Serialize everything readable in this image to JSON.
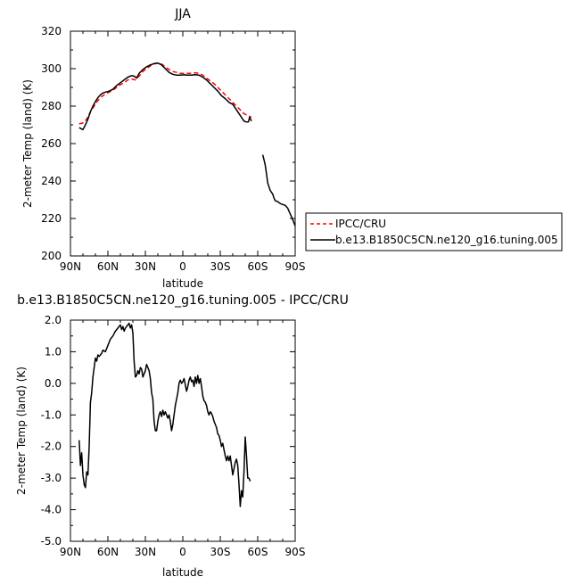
{
  "chart_data": [
    {
      "type": "line",
      "title": "JJA",
      "xlabel": "latitude",
      "ylabel": "2-meter Temp (land) (K)",
      "xlim": [
        90,
        -90
      ],
      "ylim": [
        200,
        320
      ],
      "x_ticks": [
        90,
        60,
        30,
        0,
        -30,
        -60,
        -90
      ],
      "x_tick_labels": [
        "90N",
        "60N",
        "30N",
        "0",
        "30S",
        "60S",
        "90S"
      ],
      "y_ticks": [
        200,
        220,
        240,
        260,
        280,
        300,
        320
      ],
      "y_tick_labels": [
        "200",
        "220",
        "240",
        "260",
        "280",
        "300",
        "320"
      ],
      "legend_position": "right, outside plot",
      "series": [
        {
          "name": "IPCC/CRU",
          "color": "#ff0000",
          "dash": "dashed",
          "points": [
            [
              83,
              270.5
            ],
            [
              80,
              271
            ],
            [
              77,
              273
            ],
            [
              74,
              277
            ],
            [
              71,
              280
            ],
            [
              68,
              283
            ],
            [
              65,
              285
            ],
            [
              62,
              286.5
            ],
            [
              59,
              287.5
            ],
            [
              56,
              288.5
            ],
            [
              53,
              290
            ],
            [
              50,
              291.5
            ],
            [
              47,
              292.5
            ],
            [
              44,
              294
            ],
            [
              41,
              294.5
            ],
            [
              38,
              294
            ],
            [
              35,
              296
            ],
            [
              32,
              298.5
            ],
            [
              29,
              300
            ],
            [
              26,
              301.5
            ],
            [
              23,
              302.5
            ],
            [
              20,
              303
            ],
            [
              17,
              302.5
            ],
            [
              14,
              301
            ],
            [
              11,
              299.5
            ],
            [
              8,
              298.5
            ],
            [
              5,
              298
            ],
            [
              2,
              297.5
            ],
            [
              -1,
              297.5
            ],
            [
              -4,
              297.5
            ],
            [
              -7,
              297.5
            ],
            [
              -10,
              297.8
            ],
            [
              -13,
              297.5
            ],
            [
              -16,
              296.5
            ],
            [
              -19,
              295
            ],
            [
              -22,
              293.5
            ],
            [
              -25,
              292
            ],
            [
              -28,
              290
            ],
            [
              -31,
              288
            ],
            [
              -34,
              286
            ],
            [
              -37,
              284
            ],
            [
              -40,
              282
            ],
            [
              -43,
              280
            ],
            [
              -46,
              278
            ],
            [
              -49,
              276
            ],
            [
              -52,
              275
            ],
            [
              -55,
              274
            ]
          ]
        },
        {
          "name": "b.e13.B1850C5CN.ne120_g16.tuning.005",
          "color": "#000000",
          "dash": "solid",
          "segments": [
            [
              [
                83,
                268.5
              ],
              [
                80,
                267.5
              ],
              [
                78,
                270
              ],
              [
                76,
                273
              ],
              [
                74,
                277
              ],
              [
                72,
                280
              ],
              [
                70,
                282.5
              ],
              [
                68,
                284.5
              ],
              [
                66,
                286
              ],
              [
                64,
                287
              ],
              [
                62,
                287.5
              ],
              [
                59,
                288
              ],
              [
                56,
                289
              ],
              [
                53,
                291
              ],
              [
                50,
                292.5
              ],
              [
                47,
                294
              ],
              [
                44,
                295.5
              ],
              [
                41,
                296.3
              ],
              [
                39,
                296
              ],
              [
                37,
                295
              ],
              [
                35,
                297.5
              ],
              [
                32,
                299.5
              ],
              [
                29,
                301
              ],
              [
                26,
                302
              ],
              [
                23,
                302.7
              ],
              [
                20,
                303
              ],
              [
                17,
                302
              ],
              [
                14,
                300
              ],
              [
                11,
                298
              ],
              [
                8,
                297
              ],
              [
                5,
                296.5
              ],
              [
                2,
                296.5
              ],
              [
                -1,
                296.7
              ],
              [
                -4,
                296.5
              ],
              [
                -7,
                296.5
              ],
              [
                -10,
                296.8
              ],
              [
                -13,
                296.5
              ],
              [
                -16,
                295.5
              ],
              [
                -19,
                294
              ],
              [
                -22,
                292
              ],
              [
                -25,
                290
              ],
              [
                -28,
                288
              ],
              [
                -31,
                285.5
              ],
              [
                -34,
                284
              ],
              [
                -37,
                282
              ],
              [
                -40,
                281
              ],
              [
                -43,
                278
              ],
              [
                -45,
                276
              ],
              [
                -47,
                274
              ],
              [
                -49,
                272
              ],
              [
                -51,
                271.5
              ],
              [
                -52.5,
                271.5
              ],
              [
                -53.5,
                274
              ],
              [
                -55,
                272
              ]
            ],
            [
              [
                -64,
                254
              ],
              [
                -65,
                251.5
              ],
              [
                -66,
                248.5
              ],
              [
                -67,
                244
              ],
              [
                -68,
                239
              ],
              [
                -69,
                237
              ],
              [
                -70,
                235
              ],
              [
                -71,
                234
              ],
              [
                -72,
                233
              ],
              [
                -73,
                231
              ],
              [
                -74,
                229.5
              ],
              [
                -76,
                229
              ],
              [
                -78,
                228
              ],
              [
                -80,
                227.5
              ],
              [
                -82,
                227
              ],
              [
                -84,
                225.5
              ],
              [
                -86,
                222.5
              ],
              [
                -88,
                219.5
              ],
              [
                -90,
                216
              ]
            ]
          ]
        }
      ]
    },
    {
      "type": "line",
      "title": "b.e13.B1850C5CN.ne120_g16.tuning.005 - IPCC/CRU",
      "xlabel": "latitude",
      "ylabel": "2-meter Temp (land) (K)",
      "xlim": [
        90,
        -90
      ],
      "ylim": [
        -5.0,
        2.0
      ],
      "x_ticks": [
        90,
        60,
        30,
        0,
        -30,
        -60,
        -90
      ],
      "x_tick_labels": [
        "90N",
        "60N",
        "30N",
        "0",
        "30S",
        "60S",
        "90S"
      ],
      "y_ticks": [
        -5,
        -4,
        -3,
        -2,
        -1,
        0,
        1,
        2
      ],
      "y_tick_labels": [
        "-5.0",
        "-4.0",
        "-3.0",
        "-2.0",
        "-1.0",
        "0.0",
        "1.0",
        "2.0"
      ],
      "series": [
        {
          "name": "",
          "color": "#000000",
          "dash": "solid",
          "points": [
            [
              83,
              -1.8
            ],
            [
              82,
              -2.6
            ],
            [
              81,
              -2.2
            ],
            [
              80,
              -2.9
            ],
            [
              79,
              -3.2
            ],
            [
              78,
              -3.3
            ],
            [
              77,
              -2.8
            ],
            [
              76,
              -2.9
            ],
            [
              75,
              -2.0
            ],
            [
              74,
              -0.6
            ],
            [
              73,
              -0.3
            ],
            [
              72,
              0.2
            ],
            [
              71,
              0.5
            ],
            [
              70,
              0.8
            ],
            [
              69,
              0.7
            ],
            [
              68,
              0.9
            ],
            [
              67,
              0.85
            ],
            [
              66,
              0.9
            ],
            [
              65,
              0.95
            ],
            [
              64,
              1.05
            ],
            [
              62,
              1.0
            ],
            [
              60,
              1.2
            ],
            [
              58,
              1.4
            ],
            [
              56,
              1.5
            ],
            [
              54,
              1.65
            ],
            [
              52,
              1.75
            ],
            [
              50,
              1.85
            ],
            [
              49,
              1.7
            ],
            [
              48,
              1.8
            ],
            [
              47,
              1.65
            ],
            [
              46,
              1.75
            ],
            [
              45,
              1.8
            ],
            [
              44,
              1.85
            ],
            [
              43,
              1.9
            ],
            [
              42,
              1.75
            ],
            [
              41,
              1.85
            ],
            [
              40,
              1.6
            ],
            [
              39,
              0.7
            ],
            [
              38,
              0.2
            ],
            [
              37,
              0.25
            ],
            [
              36,
              0.4
            ],
            [
              35,
              0.3
            ],
            [
              34,
              0.5
            ],
            [
              33,
              0.45
            ],
            [
              32,
              0.2
            ],
            [
              31,
              0.3
            ],
            [
              30,
              0.4
            ],
            [
              29,
              0.6
            ],
            [
              28,
              0.5
            ],
            [
              27,
              0.4
            ],
            [
              26,
              0.15
            ],
            [
              25,
              -0.3
            ],
            [
              24,
              -0.5
            ],
            [
              23,
              -1.2
            ],
            [
              22,
              -1.5
            ],
            [
              21,
              -1.5
            ],
            [
              20,
              -1.2
            ],
            [
              19,
              -1.0
            ],
            [
              18,
              -0.9
            ],
            [
              17,
              -1.05
            ],
            [
              16,
              -0.85
            ],
            [
              15,
              -1.0
            ],
            [
              14,
              -0.9
            ],
            [
              13,
              -1.0
            ],
            [
              12,
              -1.1
            ],
            [
              11,
              -1.0
            ],
            [
              10,
              -1.2
            ],
            [
              9,
              -1.5
            ],
            [
              8,
              -1.3
            ],
            [
              7,
              -1.0
            ],
            [
              6,
              -0.7
            ],
            [
              5,
              -0.5
            ],
            [
              4,
              -0.3
            ],
            [
              3,
              0.0
            ],
            [
              2,
              0.1
            ],
            [
              1,
              0.0
            ],
            [
              0,
              0.05
            ],
            [
              -1,
              0.15
            ],
            [
              -2,
              -0.05
            ],
            [
              -3,
              -0.25
            ],
            [
              -4,
              -0.1
            ],
            [
              -5,
              0.1
            ],
            [
              -6,
              0.2
            ],
            [
              -7,
              0.05
            ],
            [
              -8,
              0.1
            ],
            [
              -9,
              -0.1
            ],
            [
              -10,
              0.2
            ],
            [
              -11,
              0.0
            ],
            [
              -12,
              0.25
            ],
            [
              -13,
              0.0
            ],
            [
              -14,
              0.15
            ],
            [
              -15,
              -0.1
            ],
            [
              -16,
              -0.4
            ],
            [
              -17,
              -0.55
            ],
            [
              -18,
              -0.6
            ],
            [
              -19,
              -0.7
            ],
            [
              -20,
              -0.9
            ],
            [
              -21,
              -1.0
            ],
            [
              -22,
              -0.9
            ],
            [
              -23,
              -0.95
            ],
            [
              -24,
              -1.05
            ],
            [
              -25,
              -1.2
            ],
            [
              -26,
              -1.3
            ],
            [
              -27,
              -1.4
            ],
            [
              -28,
              -1.6
            ],
            [
              -29,
              -1.65
            ],
            [
              -30,
              -1.8
            ],
            [
              -31,
              -2.0
            ],
            [
              -32,
              -1.9
            ],
            [
              -33,
              -2.1
            ],
            [
              -34,
              -2.3
            ],
            [
              -35,
              -2.45
            ],
            [
              -36,
              -2.3
            ],
            [
              -37,
              -2.45
            ],
            [
              -38,
              -2.3
            ],
            [
              -39,
              -2.6
            ],
            [
              -40,
              -2.9
            ],
            [
              -41,
              -2.7
            ],
            [
              -42,
              -2.5
            ],
            [
              -43,
              -2.4
            ],
            [
              -44,
              -2.6
            ],
            [
              -45,
              -3.2
            ],
            [
              -46,
              -3.9
            ],
            [
              -47,
              -3.4
            ],
            [
              -48,
              -3.6
            ],
            [
              -49,
              -2.8
            ],
            [
              -50,
              -1.7
            ],
            [
              -51,
              -2.3
            ],
            [
              -52,
              -3.0
            ],
            [
              -53,
              -3.0
            ],
            [
              -54,
              -3.1
            ]
          ]
        }
      ]
    }
  ]
}
